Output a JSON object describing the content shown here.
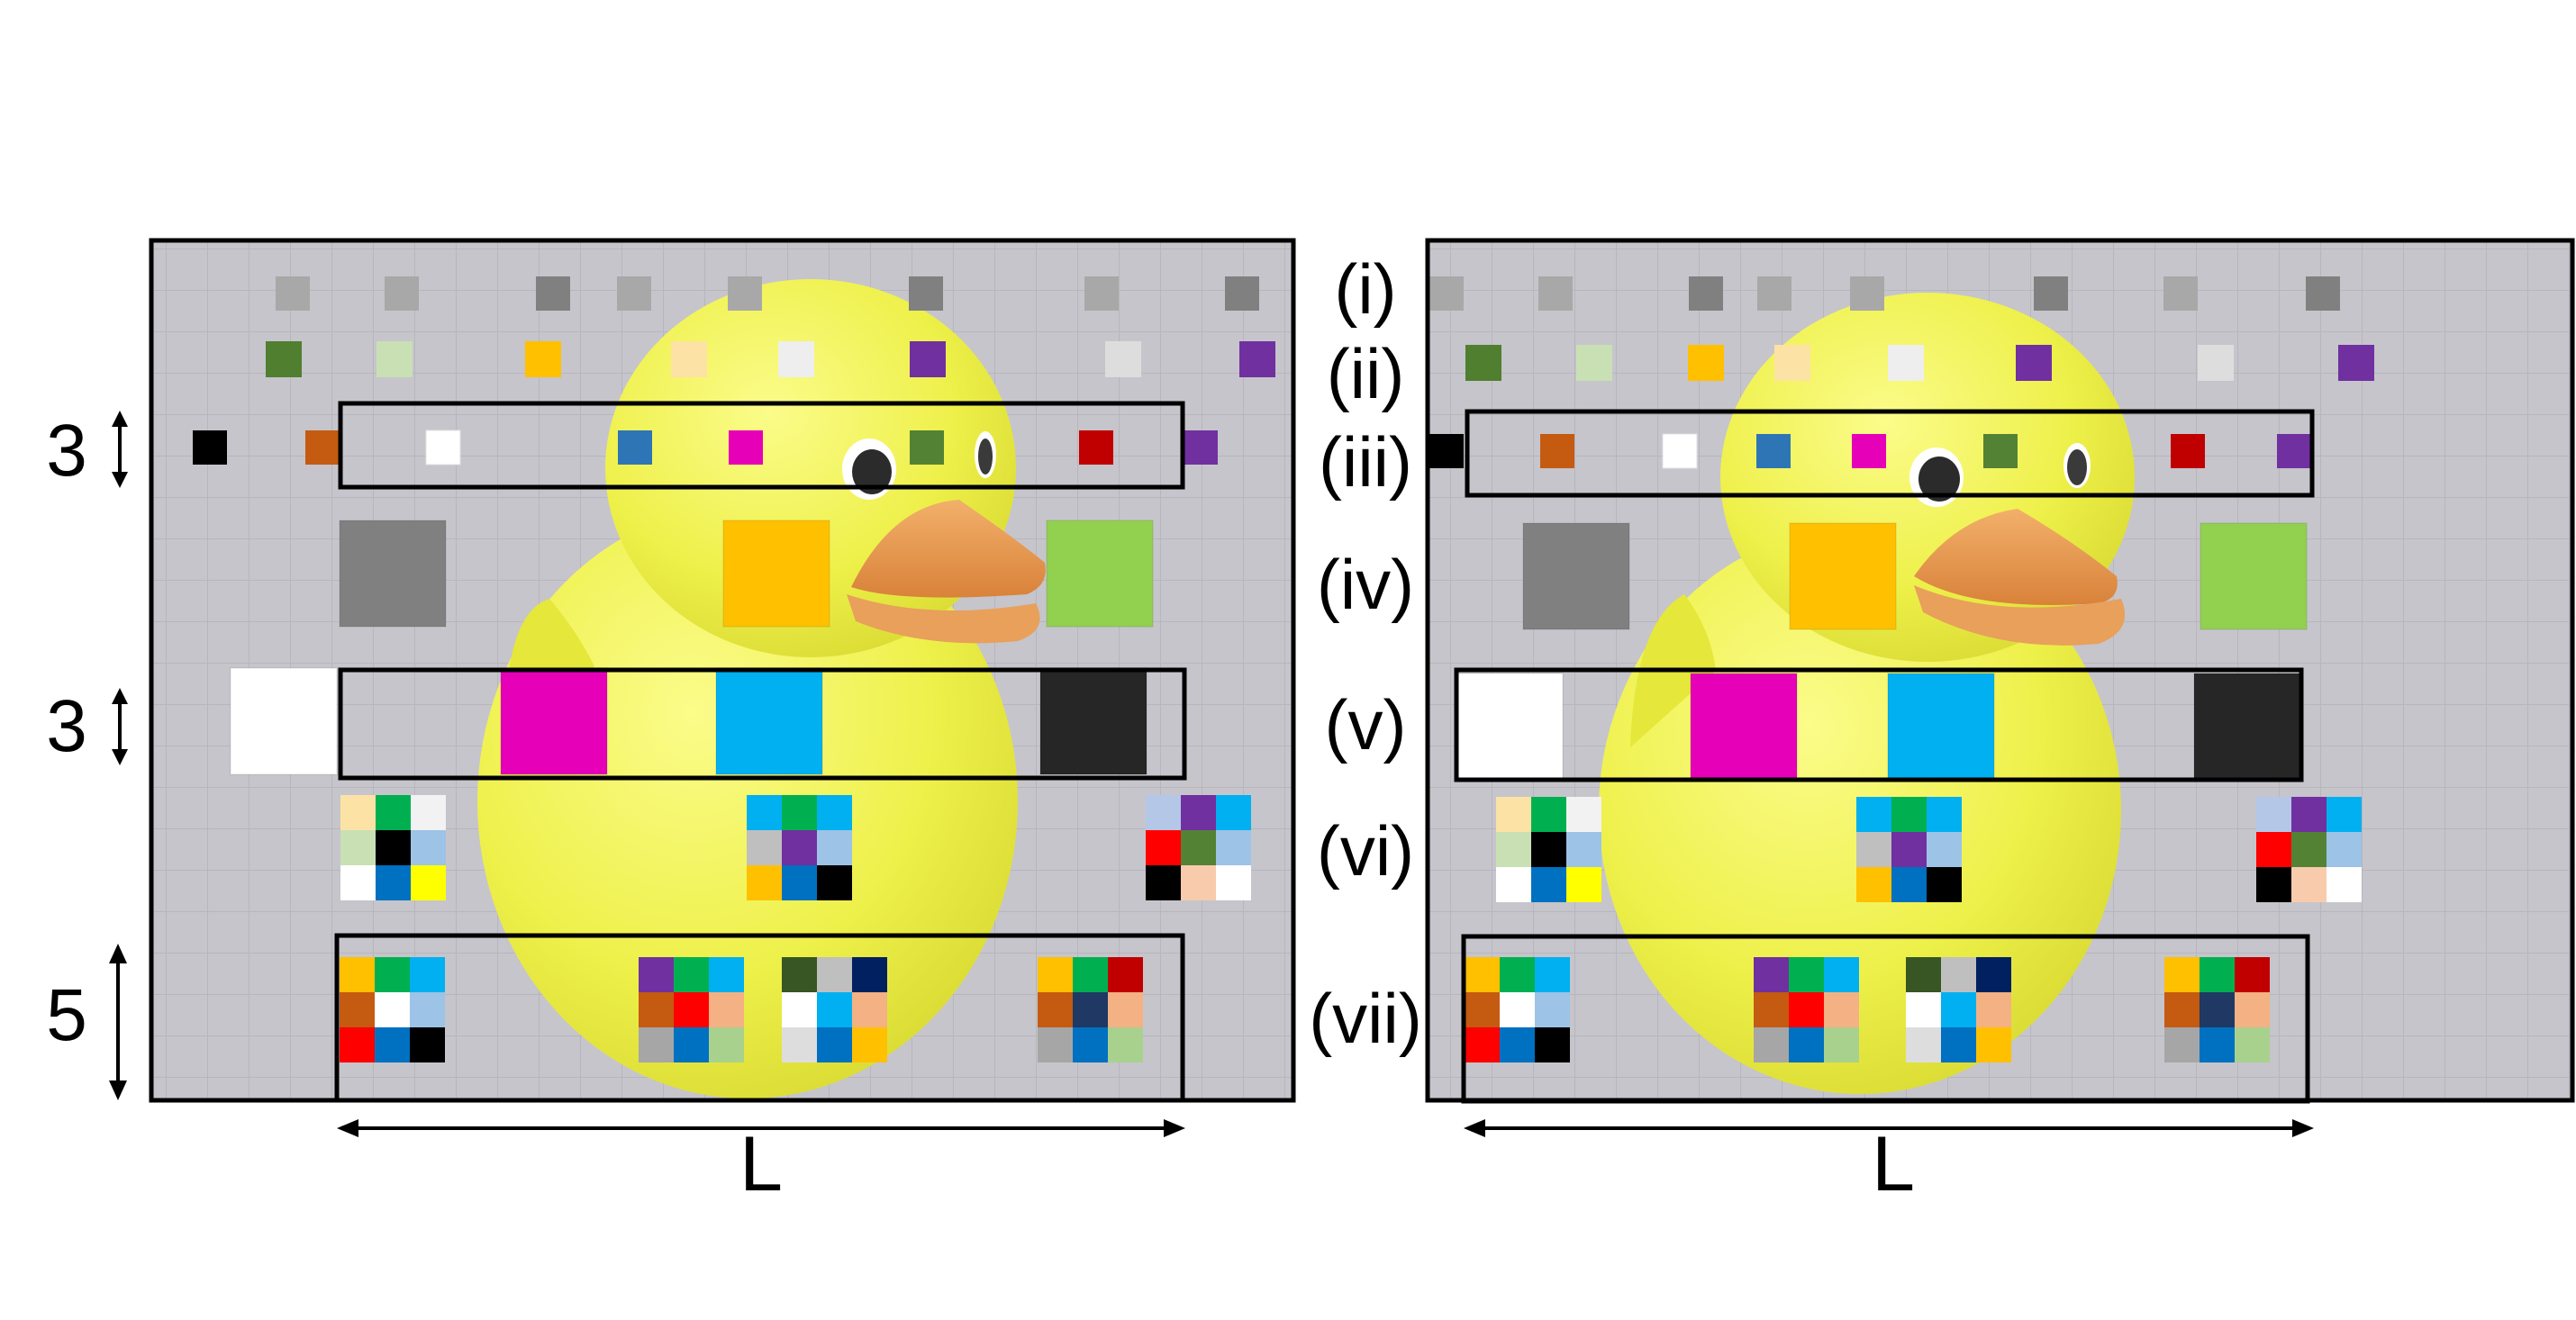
{
  "row_labels": [
    "(i)",
    "(ii)",
    "(iii)",
    "(iv)",
    "(v)",
    "(vi)",
    "(vii)"
  ],
  "dimensions": {
    "band_height_a": "3",
    "band_height_b": "3",
    "band_height_c": "5",
    "width": "L"
  },
  "colors": {
    "background": "#c6c5cb",
    "duck_body": "#eef04a",
    "duck_shadow": "#d9db33",
    "beak": "#eb9a4e",
    "frame": "#000000"
  },
  "panels": [
    {
      "row_i": [
        "#a8a8a8",
        "#a8a8a8",
        "#808080",
        "#a8a8a8",
        "#a8a8a8",
        "#808080",
        "#a8a8a8",
        "#808080"
      ],
      "row_ii": [
        "#4f7f2f",
        "#c9e0b5",
        "#ffc000",
        "#fde2a6",
        "#eeeeee",
        "#7030a0",
        "#dddddd",
        "#7030a0"
      ],
      "row_iii": [
        "#000000",
        "#c55a11",
        "#ffffff",
        "#2e75b6",
        "#e600b8",
        "#548235",
        "#c00000",
        "#7030a0"
      ],
      "row_iv": [
        "#808080",
        "#ffc000",
        "#92d050"
      ],
      "row_v": [
        "#ffffff",
        "#e600b8",
        "#00b0f0",
        "#262626"
      ]
    },
    {
      "row_i": [
        "#a8a8a8",
        "#a8a8a8",
        "#808080",
        "#a8a8a8",
        "#a8a8a8",
        "#808080",
        "#a8a8a8",
        "#808080"
      ],
      "row_ii": [
        "#4f7f2f",
        "#c9e0b5",
        "#ffc000",
        "#fde2a6",
        "#eeeeee",
        "#7030a0",
        "#dddddd",
        "#7030a0"
      ],
      "row_iii": [
        "#000000",
        "#c55a11",
        "#ffffff",
        "#2e75b6",
        "#e600b8",
        "#548235",
        "#c00000",
        "#7030a0"
      ],
      "row_iv": [
        "#808080",
        "#ffc000",
        "#92d050"
      ],
      "row_v": [
        "#ffffff",
        "#e600b8",
        "#00b0f0",
        "#262626"
      ]
    }
  ],
  "grids_vi": [
    [
      "#fde2a6",
      "#00b050",
      "#f2f2f2",
      "#c9e0b5",
      "#000000",
      "#9dc3e6",
      "#ffffff",
      "#0070c0",
      "#ffff00"
    ],
    [
      "#00b0f0",
      "#00b050",
      "#00b0f0",
      "#bfbfbf",
      "#7030a0",
      "#9dc3e6",
      "#ffc000",
      "#0070c0",
      "#000000"
    ],
    [
      "#b4c7e7",
      "#7030a0",
      "#00b0f0",
      "#ff0000",
      "#548235",
      "#9dc3e6",
      "#000000",
      "#f8cbad",
      "#ffffff"
    ]
  ],
  "grids_vii": [
    [
      "#ffc000",
      "#00b050",
      "#00b0f0",
      "#c55a11",
      "#ffffff",
      "#9dc3e6",
      "#ff0000",
      "#0070c0",
      "#000000"
    ],
    [
      "#7030a0",
      "#00b050",
      "#00b0f0",
      "#c55a11",
      "#ff0000",
      "#f4b183",
      "#a6a6a6",
      "#0070c0",
      "#a9d18e"
    ],
    [
      "#375623",
      "#bfbfbf",
      "#002060",
      "#ffffff",
      "#00b0f0",
      "#f4b183",
      "#dddddd",
      "#0070c0",
      "#ffc000"
    ],
    [
      "#ffc000",
      "#00b050",
      "#c00000",
      "#c55a11",
      "#1f3864",
      "#f4b183",
      "#a6a6a6",
      "#0070c0",
      "#a9d18e"
    ]
  ]
}
